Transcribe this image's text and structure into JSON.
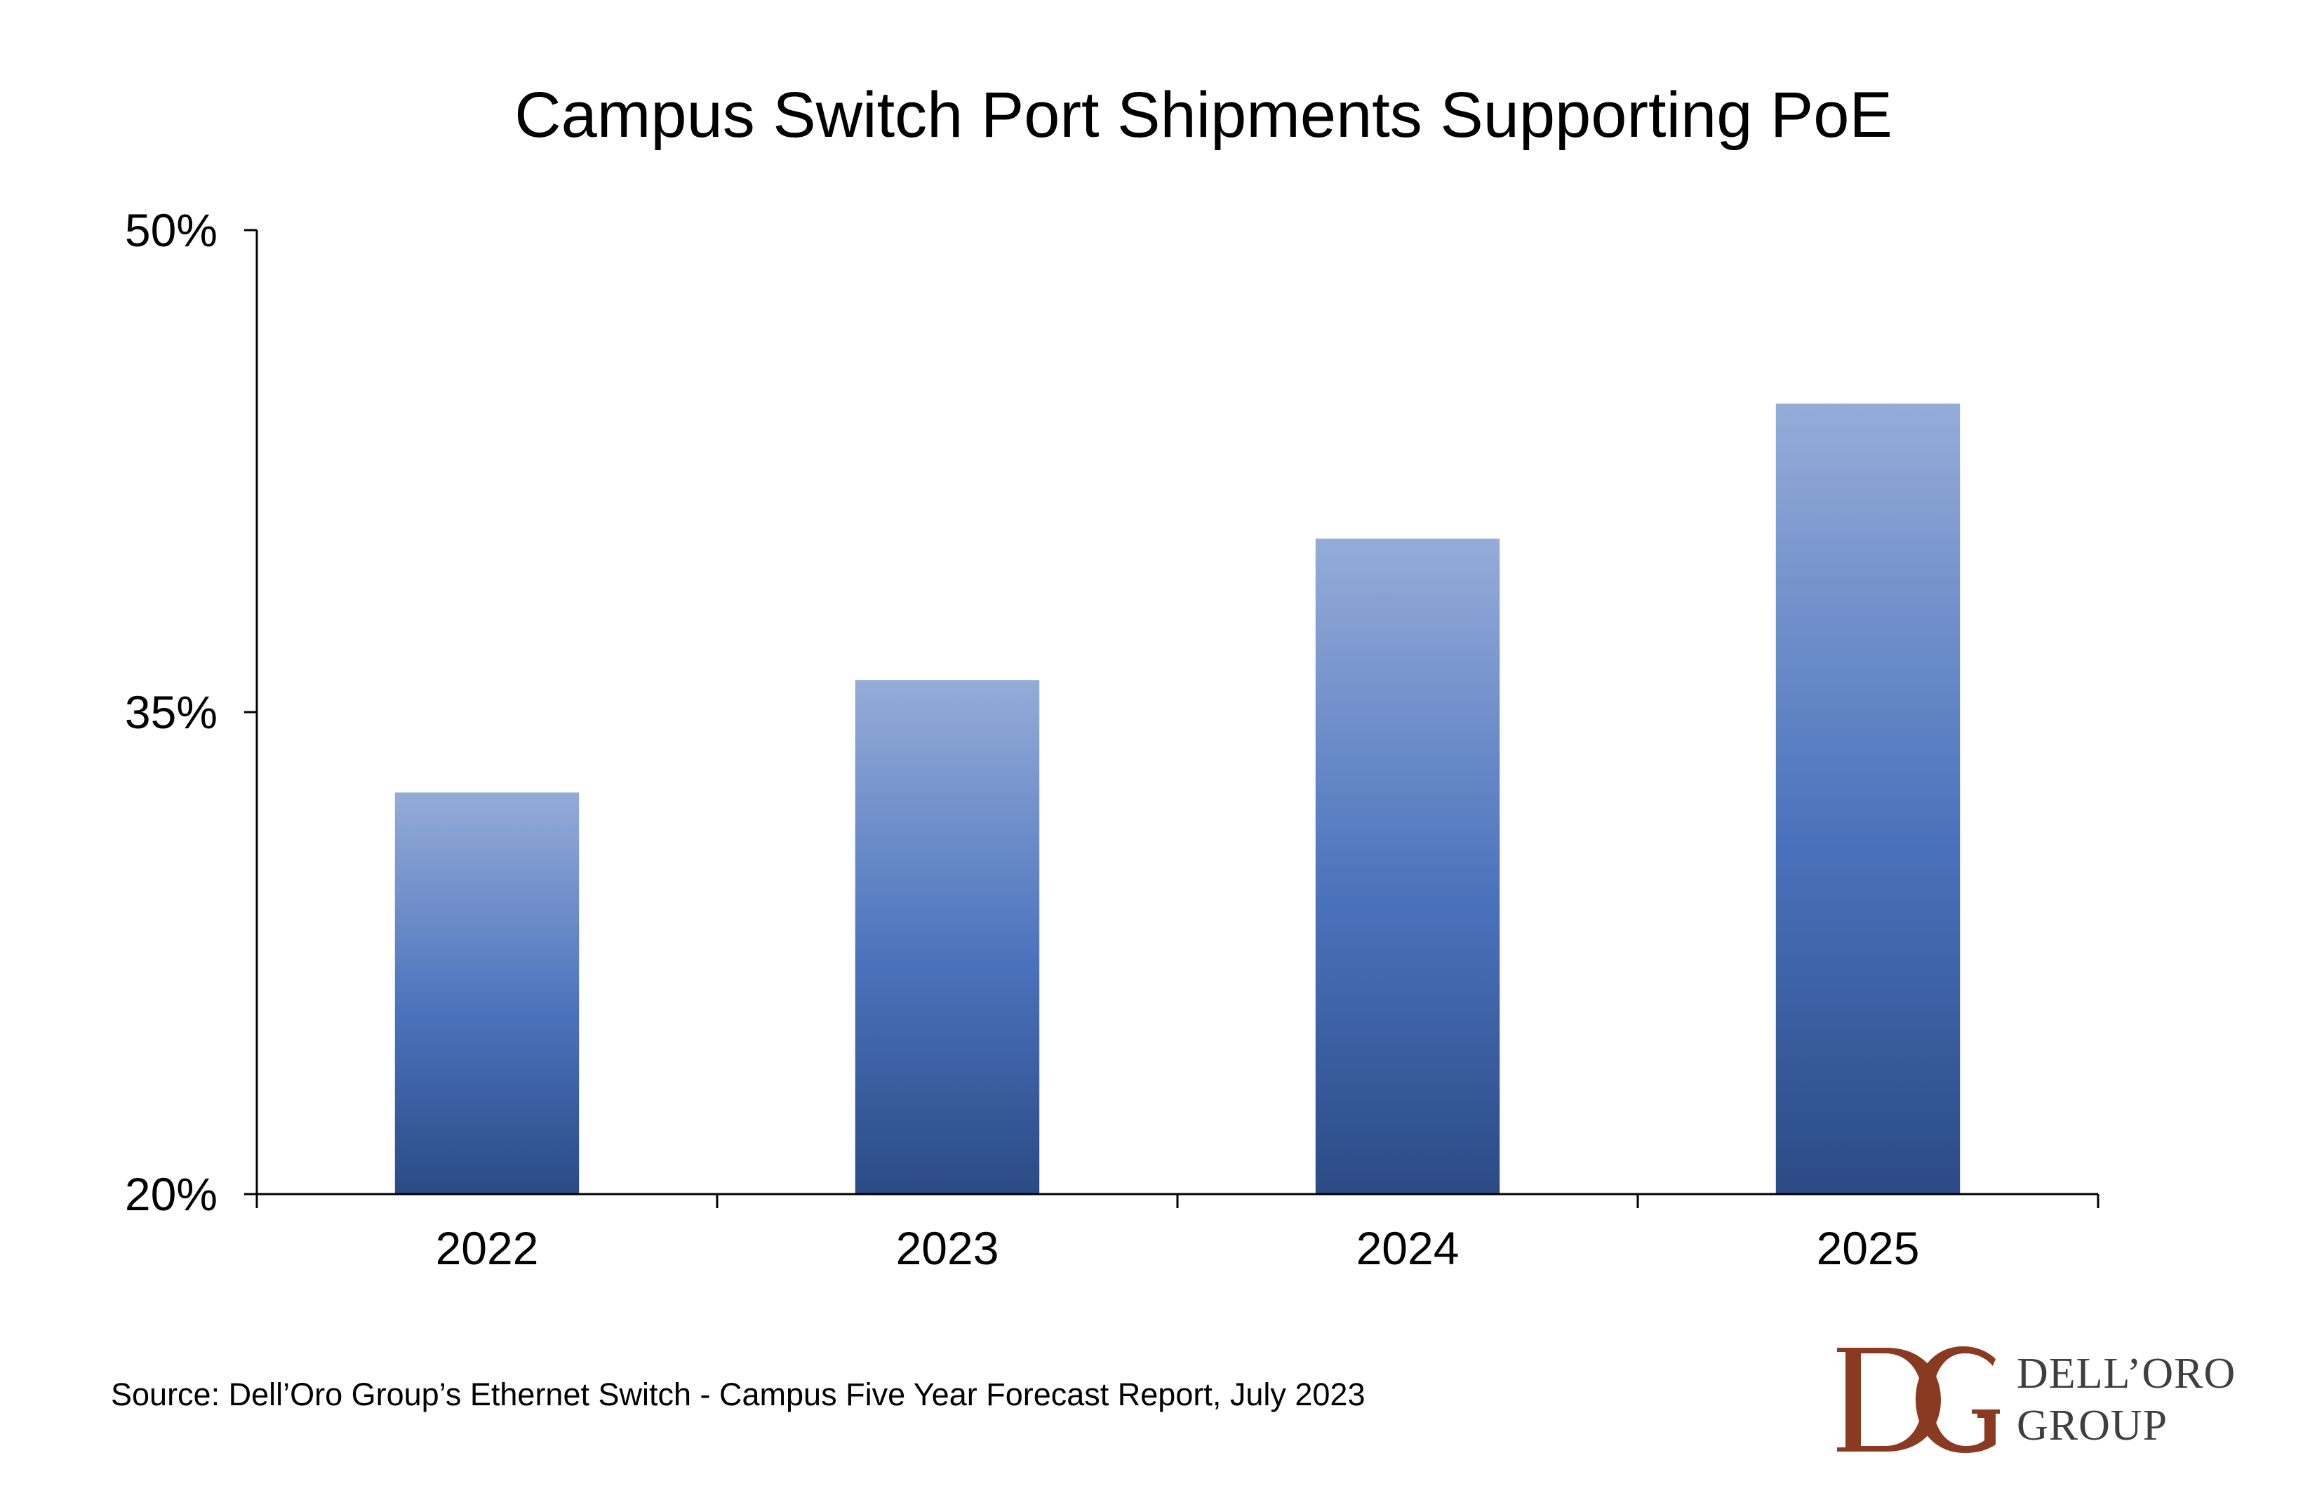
{
  "chart_data": {
    "type": "bar",
    "title": "Campus Switch Port Shipments Supporting PoE",
    "categories": [
      "2022",
      "2023",
      "2024",
      "2025"
    ],
    "values": [
      32.5,
      36.0,
      40.4,
      44.6
    ],
    "ylim": [
      20,
      50
    ],
    "yticks": [
      "20%",
      "35%",
      "50%"
    ],
    "ytick_values": [
      20,
      35,
      50
    ],
    "xlabel": "",
    "ylabel": "",
    "grid": false,
    "legend": "none",
    "bar_gradient": {
      "top": "#95acd8",
      "middle": "#4a72bc",
      "bottom": "#2b4a85"
    }
  },
  "source_text": "Source: Dell’Oro Group’s Ethernet Switch - Campus Five Year Forecast Report, July 2023",
  "logo": {
    "mark": "DG",
    "line1": "DELL’ORO",
    "line2": "GROUP",
    "color": "#8b3a22"
  }
}
